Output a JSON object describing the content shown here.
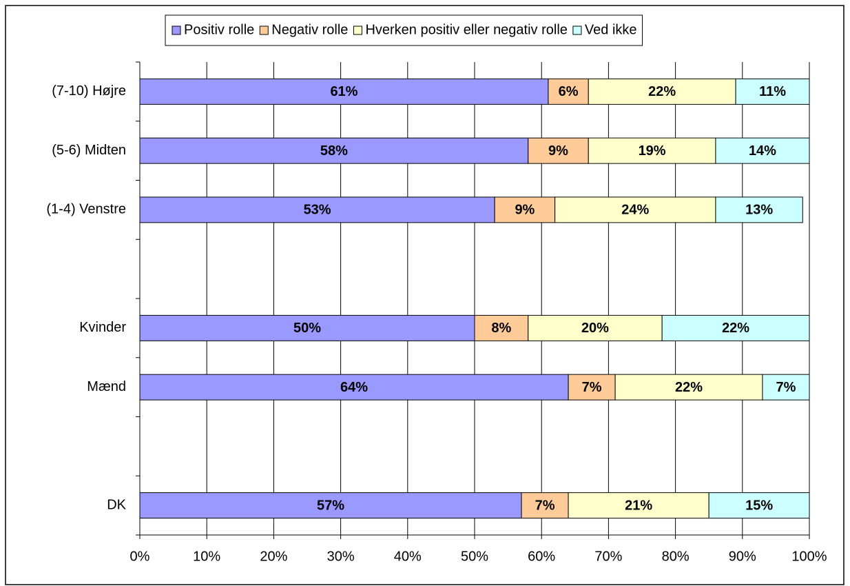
{
  "chart_data": {
    "type": "stacked_bar_horizontal",
    "categories": [
      "(7-10) Højre",
      "(5-6) Midten",
      "(1-4) Venstre",
      null,
      "Kvinder",
      "Mænd",
      null,
      "DK"
    ],
    "series": [
      {
        "name": "Positiv rolle",
        "color": "#9999ff",
        "values": [
          61,
          58,
          53,
          null,
          50,
          64,
          null,
          57
        ],
        "value_labels": [
          "61%",
          "58%",
          "53%",
          null,
          "50%",
          "64%",
          null,
          "57%"
        ]
      },
      {
        "name": "Negativ rolle",
        "color": "#ffcc99",
        "values": [
          6,
          9,
          9,
          null,
          8,
          7,
          null,
          7
        ],
        "value_labels": [
          "6%",
          "9%",
          "9%",
          null,
          "8%",
          "7%",
          null,
          "7%"
        ]
      },
      {
        "name": "Hverken positiv eller negativ rolle",
        "color": "#ffffcc",
        "values": [
          22,
          19,
          24,
          null,
          20,
          22,
          null,
          21
        ],
        "value_labels": [
          "22%",
          "19%",
          "24%",
          null,
          "20%",
          "22%",
          null,
          "21%"
        ]
      },
      {
        "name": "Ved ikke",
        "color": "#ccffff",
        "values": [
          11,
          14,
          13,
          null,
          22,
          7,
          null,
          15
        ],
        "value_labels": [
          "11%",
          "14%",
          "13%",
          null,
          "22%",
          "7%",
          null,
          "15%"
        ]
      }
    ],
    "xlim": [
      0,
      100
    ],
    "xticks": [
      {
        "value": 0,
        "label": "0%"
      },
      {
        "value": 10,
        "label": "10%"
      },
      {
        "value": 20,
        "label": "20%"
      },
      {
        "value": 30,
        "label": "30%"
      },
      {
        "value": 40,
        "label": "40%"
      },
      {
        "value": 50,
        "label": "50%"
      },
      {
        "value": 60,
        "label": "60%"
      },
      {
        "value": 70,
        "label": "70%"
      },
      {
        "value": 80,
        "label": "80%"
      },
      {
        "value": 90,
        "label": "90%"
      },
      {
        "value": 100,
        "label": "100%"
      }
    ],
    "grid": true,
    "legend": "top"
  }
}
